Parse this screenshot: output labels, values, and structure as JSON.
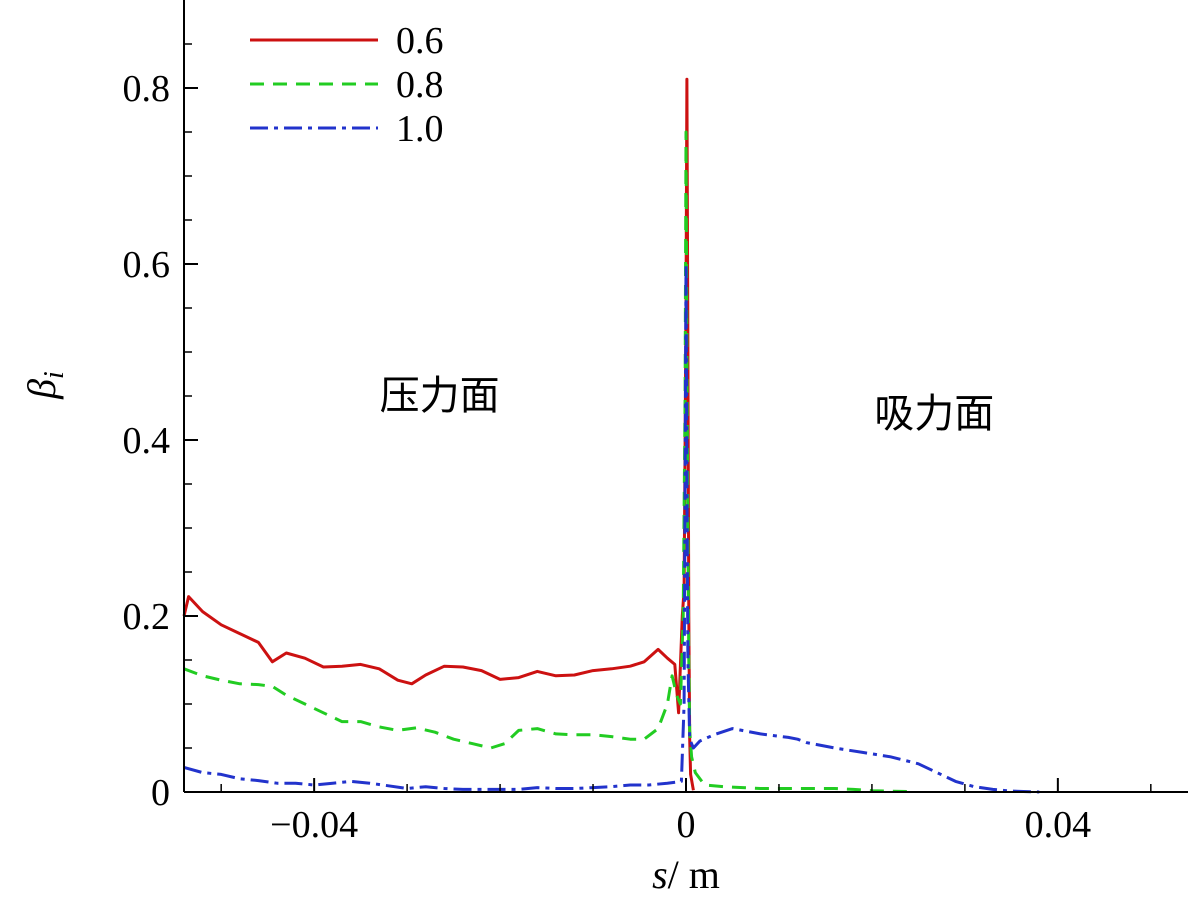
{
  "chart_data": {
    "type": "line",
    "xlabel_italic": "s",
    "xlabel_unit": "/ m",
    "ylabel_main": "β",
    "ylabel_sub": "i",
    "xlim": [
      -0.054,
      0.054
    ],
    "ylim": [
      0,
      0.9
    ],
    "x_ticks": [
      {
        "value": -0.04,
        "label": "−0.04"
      },
      {
        "value": 0,
        "label": "0"
      },
      {
        "value": 0.04,
        "label": "0.04"
      }
    ],
    "y_ticks": [
      {
        "value": 0,
        "label": "0"
      },
      {
        "value": 0.2,
        "label": "0.2"
      },
      {
        "value": 0.4,
        "label": "0.4"
      },
      {
        "value": 0.6,
        "label": "0.6"
      },
      {
        "value": 0.8,
        "label": "0.8"
      }
    ],
    "annotations": [
      {
        "text": "压力面",
        "x": -0.0265,
        "y": 0.435
      },
      {
        "text": "吸力面",
        "x": 0.0267,
        "y": 0.415
      }
    ],
    "legend_position": "top-left",
    "series": [
      {
        "name": "0.6",
        "color": "#cc1111",
        "dash": "",
        "x": [
          -0.054,
          -0.0535,
          -0.052,
          -0.05,
          -0.048,
          -0.046,
          -0.0445,
          -0.043,
          -0.041,
          -0.039,
          -0.037,
          -0.035,
          -0.033,
          -0.031,
          -0.0295,
          -0.028,
          -0.026,
          -0.024,
          -0.022,
          -0.02,
          -0.018,
          -0.016,
          -0.014,
          -0.012,
          -0.01,
          -0.008,
          -0.006,
          -0.0045,
          -0.003,
          -0.002,
          -0.0012,
          -0.0008,
          -0.0004,
          -0.0002,
          0,
          0.0001,
          0.0002,
          0.0003,
          0.0004,
          0.0005,
          0.0008
        ],
        "y": [
          0.2,
          0.222,
          0.205,
          0.19,
          0.18,
          0.17,
          0.148,
          0.158,
          0.152,
          0.142,
          0.143,
          0.145,
          0.14,
          0.127,
          0.123,
          0.133,
          0.143,
          0.142,
          0.138,
          0.128,
          0.13,
          0.137,
          0.132,
          0.133,
          0.138,
          0.14,
          0.143,
          0.148,
          0.162,
          0.152,
          0.145,
          0.09,
          0.2,
          0.23,
          0.55,
          0.81,
          0.5,
          0.2,
          0.06,
          0.02,
          0.002
        ]
      },
      {
        "name": "0.8",
        "color": "#22cc22",
        "dash": "14 9",
        "x": [
          -0.054,
          -0.052,
          -0.05,
          -0.048,
          -0.046,
          -0.0445,
          -0.043,
          -0.041,
          -0.039,
          -0.037,
          -0.035,
          -0.033,
          -0.031,
          -0.029,
          -0.027,
          -0.025,
          -0.023,
          -0.021,
          -0.0195,
          -0.018,
          -0.016,
          -0.014,
          -0.012,
          -0.01,
          -0.008,
          -0.006,
          -0.0045,
          -0.003,
          -0.002,
          -0.0015,
          -0.001,
          -0.0006,
          -0.0003,
          -0.0001,
          0,
          0.0001,
          0.0002,
          0.0003,
          0.0004,
          0.0006,
          0.001,
          0.002,
          0.004,
          0.008,
          0.012,
          0.016,
          0.018,
          0.02,
          0.024
        ],
        "y": [
          0.14,
          0.132,
          0.127,
          0.123,
          0.122,
          0.12,
          0.11,
          0.1,
          0.09,
          0.08,
          0.08,
          0.074,
          0.07,
          0.073,
          0.068,
          0.06,
          0.055,
          0.05,
          0.055,
          0.07,
          0.072,
          0.066,
          0.065,
          0.065,
          0.063,
          0.06,
          0.06,
          0.072,
          0.1,
          0.132,
          0.11,
          0.1,
          0.2,
          0.45,
          0.75,
          0.5,
          0.3,
          0.15,
          0.07,
          0.04,
          0.022,
          0.008,
          0.006,
          0.004,
          0.004,
          0.004,
          0.003,
          0.0015,
          0.0005
        ]
      },
      {
        "name": "1.0",
        "color": "#2233cc",
        "dash": "18 6 4 6",
        "x": [
          -0.054,
          -0.052,
          -0.05,
          -0.048,
          -0.046,
          -0.044,
          -0.042,
          -0.04,
          -0.038,
          -0.036,
          -0.034,
          -0.032,
          -0.03,
          -0.028,
          -0.026,
          -0.024,
          -0.022,
          -0.02,
          -0.018,
          -0.016,
          -0.014,
          -0.012,
          -0.01,
          -0.008,
          -0.006,
          -0.004,
          -0.002,
          -0.0005,
          -0.0002,
          -0.0001,
          0,
          0.0001,
          0.0002,
          0.0004,
          0.0008,
          0.0015,
          0.003,
          0.005,
          0.008,
          0.011,
          0.012,
          0.013,
          0.016,
          0.019,
          0.022,
          0.025,
          0.027,
          0.029,
          0.031,
          0.033,
          0.035,
          0.038
        ],
        "y": [
          0.028,
          0.022,
          0.02,
          0.015,
          0.013,
          0.01,
          0.01,
          0.008,
          0.01,
          0.012,
          0.01,
          0.007,
          0.004,
          0.006,
          0.004,
          0.003,
          0.003,
          0.003,
          0.003,
          0.005,
          0.004,
          0.004,
          0.005,
          0.006,
          0.008,
          0.008,
          0.01,
          0.012,
          0.1,
          0.35,
          0.6,
          0.35,
          0.15,
          0.06,
          0.05,
          0.058,
          0.065,
          0.072,
          0.066,
          0.062,
          0.06,
          0.056,
          0.05,
          0.045,
          0.04,
          0.032,
          0.022,
          0.012,
          0.006,
          0.003,
          0.001,
          0
        ]
      }
    ]
  }
}
